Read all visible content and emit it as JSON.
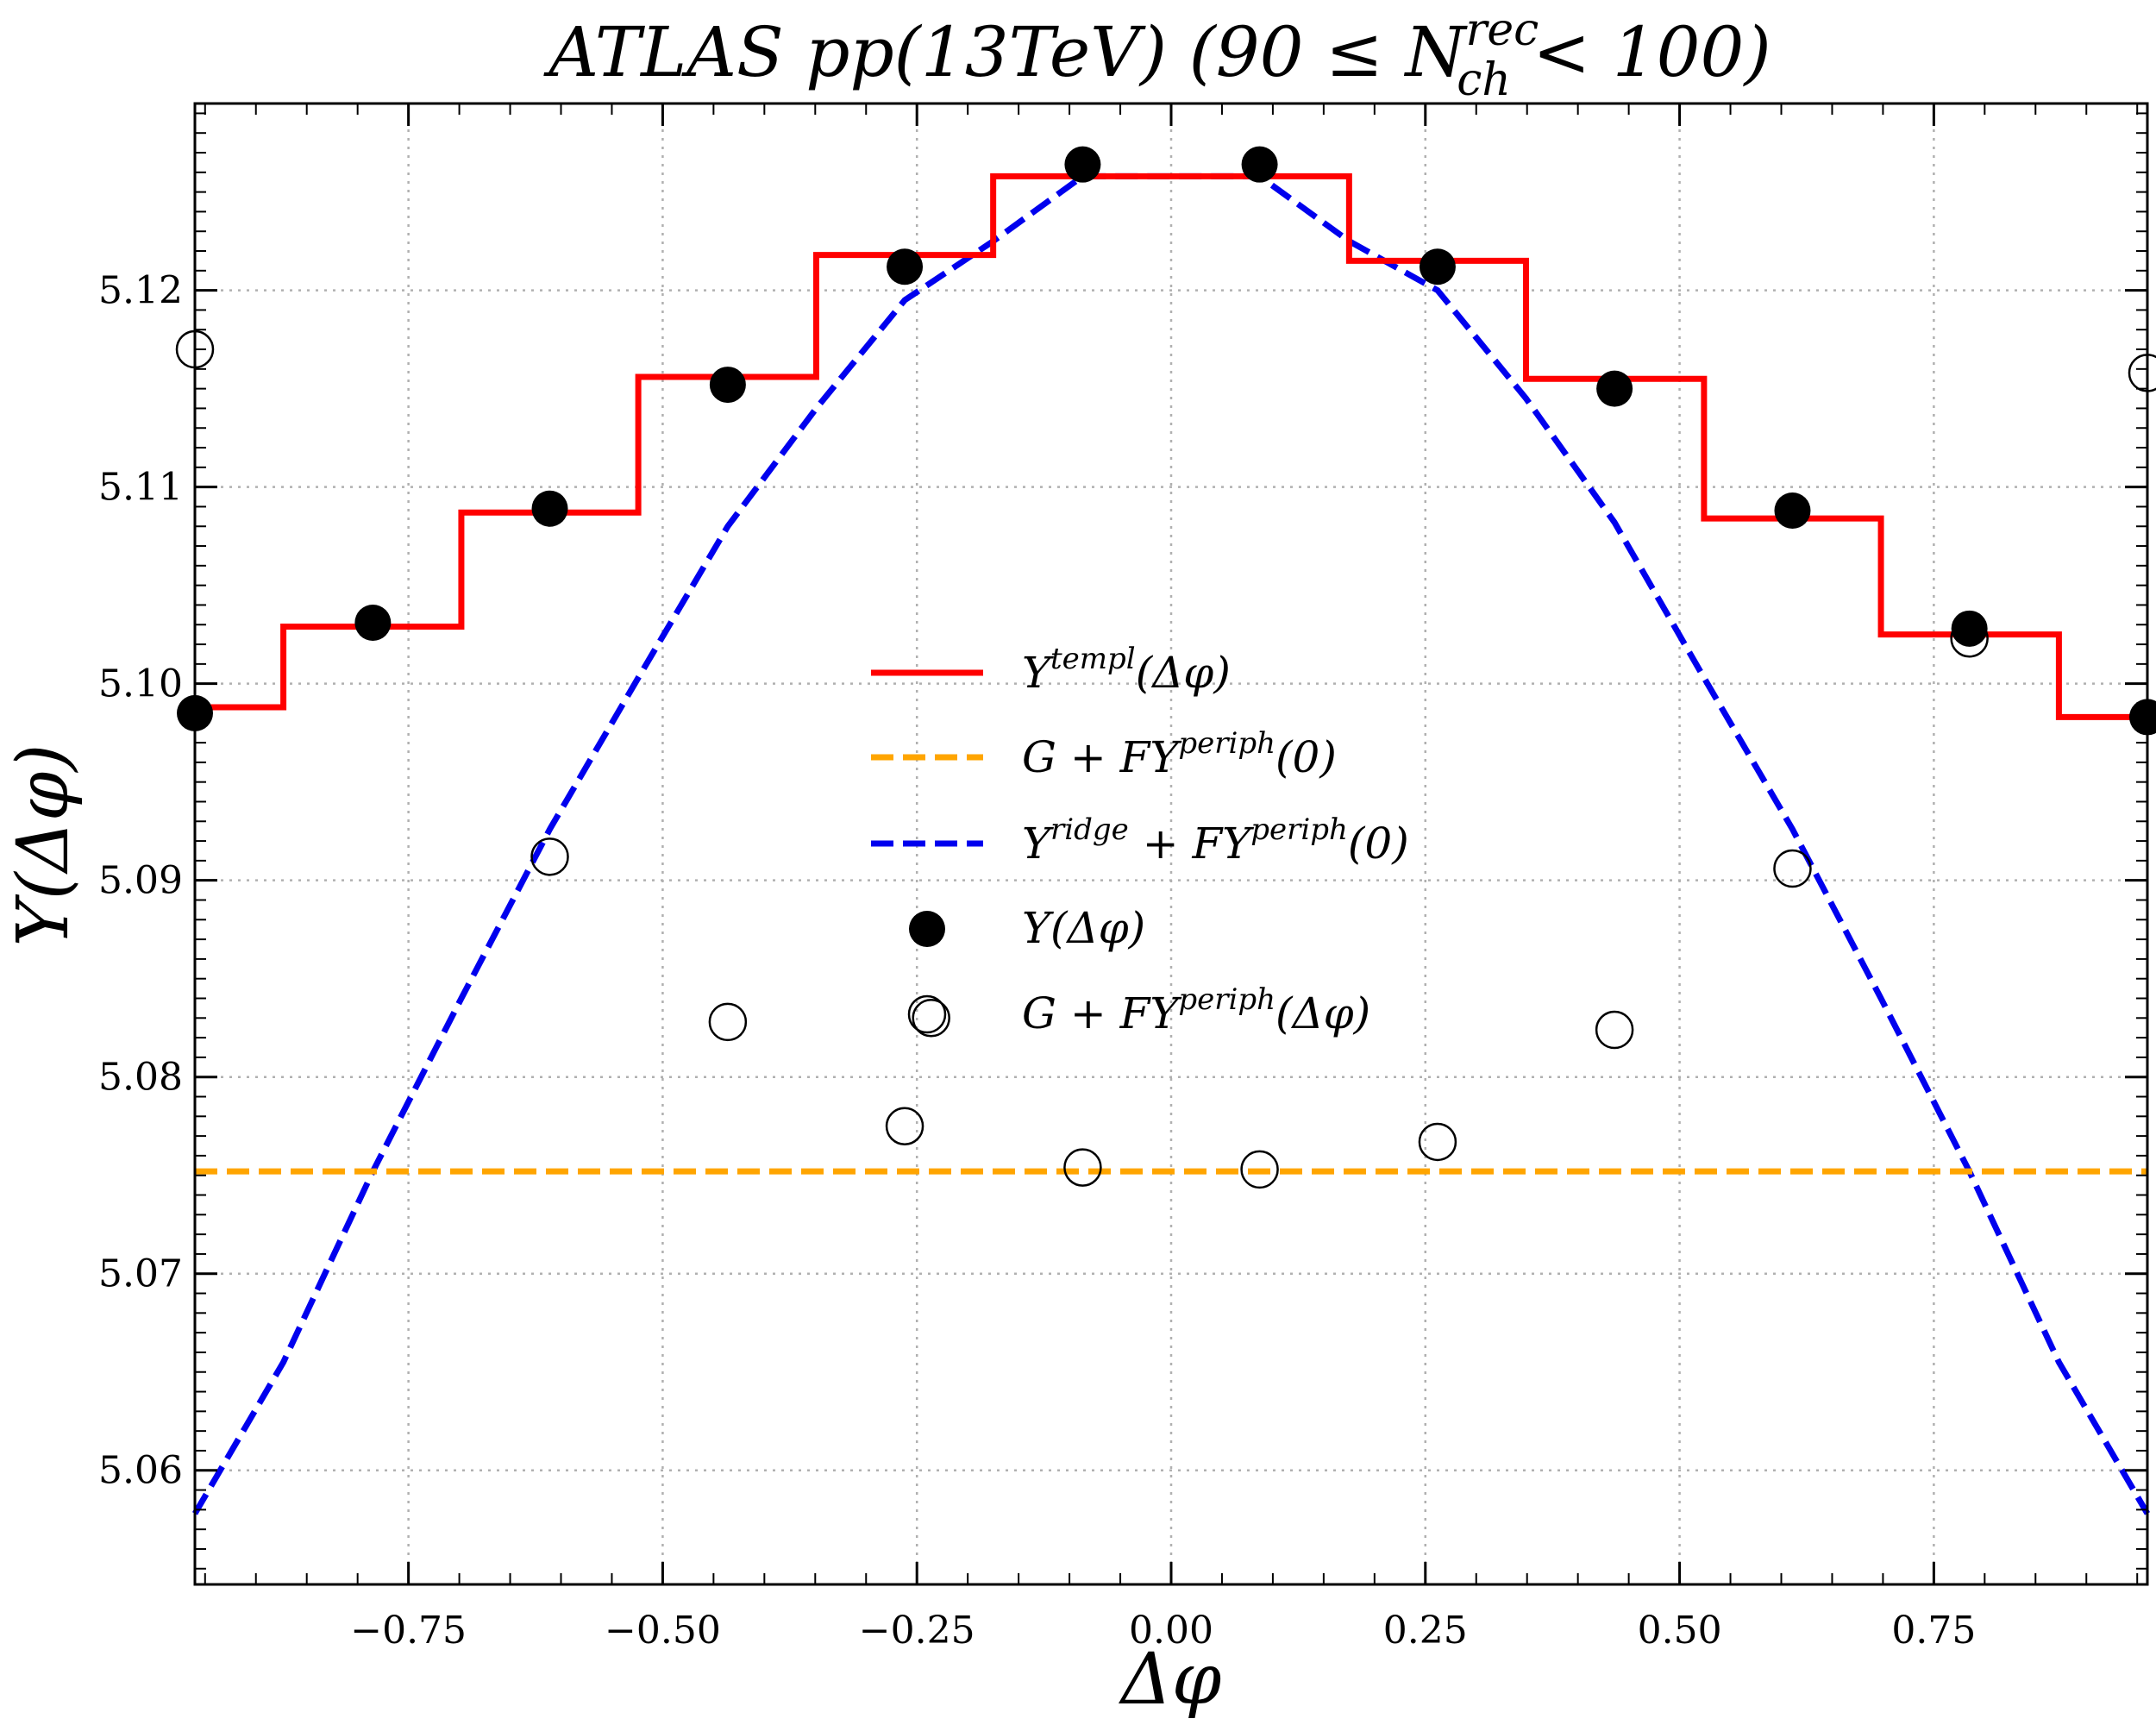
{
  "chart_data": {
    "type": "line",
    "title_parts": {
      "main": "ATLAS pp(13TeV) (90  ≤ N",
      "sup": "rec",
      "sub": "ch",
      "tail": " < 100)"
    },
    "xlabel": "Δφ",
    "ylabel": "Y(Δφ)",
    "xlim": [
      -0.96,
      0.96
    ],
    "ylim": [
      5.0542,
      5.1295
    ],
    "xticks": [
      -0.75,
      -0.5,
      -0.25,
      0.0,
      0.25,
      0.5,
      0.75
    ],
    "xtick_labels": [
      "−0.75",
      "−0.50",
      "−0.25",
      "0.00",
      "0.25",
      "0.50",
      "0.75"
    ],
    "yticks": [
      5.06,
      5.07,
      5.08,
      5.09,
      5.1,
      5.11,
      5.12
    ],
    "ytick_labels": [
      "5.06",
      "5.07",
      "5.08",
      "5.09",
      "5.10",
      "5.11",
      "5.12"
    ],
    "grid": true,
    "legend_placement": "center",
    "colors": {
      "templ": "#ff0000",
      "flat": "#ffa500",
      "ridge": "#0000ee",
      "points": "#000000"
    },
    "legend": [
      {
        "key": "templ",
        "label": "Y",
        "sup": "templ",
        "tail": "(Δφ)"
      },
      {
        "key": "flat",
        "label": "G + FY",
        "sup": "periph",
        "tail": "(0)"
      },
      {
        "key": "ridge",
        "label": "Y",
        "sup": "ridge",
        "mid": " + FY",
        "sup2": "periph",
        "tail": "(0)"
      },
      {
        "key": "data",
        "label": "Y(Δφ)"
      },
      {
        "key": "periph",
        "label": "G + FY",
        "sup": "periph",
        "tail": "(Δφ)"
      }
    ],
    "series": [
      {
        "key": "templ",
        "kind": "step",
        "edges": [
          -0.96,
          -0.873,
          -0.698,
          -0.524,
          -0.349,
          -0.175,
          0.0,
          0.175,
          0.349,
          0.524,
          0.698,
          0.873,
          0.96
        ],
        "values": [
          5.0988,
          5.1029,
          5.1087,
          5.1156,
          5.1218,
          5.1258,
          5.1258,
          5.1215,
          5.1155,
          5.1084,
          5.1025,
          5.0983
        ]
      },
      {
        "key": "flat",
        "kind": "hline",
        "value": 5.0752
      },
      {
        "key": "ridge",
        "kind": "dashed-line",
        "x": [
          -0.96,
          -0.873,
          -0.785,
          -0.698,
          -0.611,
          -0.524,
          -0.436,
          -0.349,
          -0.262,
          -0.175,
          -0.087,
          0.0,
          0.087,
          0.175,
          0.262,
          0.349,
          0.436,
          0.524,
          0.611,
          0.698,
          0.785,
          0.873,
          0.96
        ],
        "y": [
          5.0578,
          5.0655,
          5.0752,
          5.084,
          5.0926,
          5.1003,
          5.108,
          5.114,
          5.1195,
          5.1225,
          5.1258,
          5.1258,
          5.1258,
          5.1225,
          5.12,
          5.1145,
          5.1082,
          5.1003,
          5.0926,
          5.084,
          5.0752,
          5.0655,
          5.0578
        ]
      },
      {
        "key": "data",
        "kind": "filled-markers",
        "x": [
          -0.96,
          -0.785,
          -0.611,
          -0.436,
          -0.262,
          -0.087,
          0.087,
          0.262,
          0.436,
          0.611,
          0.785,
          0.96
        ],
        "y": [
          5.0985,
          5.1031,
          5.1089,
          5.1152,
          5.1212,
          5.1264,
          5.1264,
          5.1212,
          5.115,
          5.1088,
          5.1028,
          5.0983
        ]
      },
      {
        "key": "periph",
        "kind": "open-markers",
        "x": [
          -0.96,
          -0.611,
          -0.436,
          -0.262,
          -0.087,
          0.087,
          0.262,
          0.436,
          0.611,
          0.785,
          0.96
        ],
        "y": [
          5.117,
          5.0912,
          5.0828,
          5.0775,
          5.0754,
          5.0753,
          5.0767,
          5.0824,
          5.0906,
          5.1023,
          5.1158
        ]
      }
    ],
    "legend_extra_marker": {
      "x": -0.236,
      "y": 5.083
    }
  }
}
